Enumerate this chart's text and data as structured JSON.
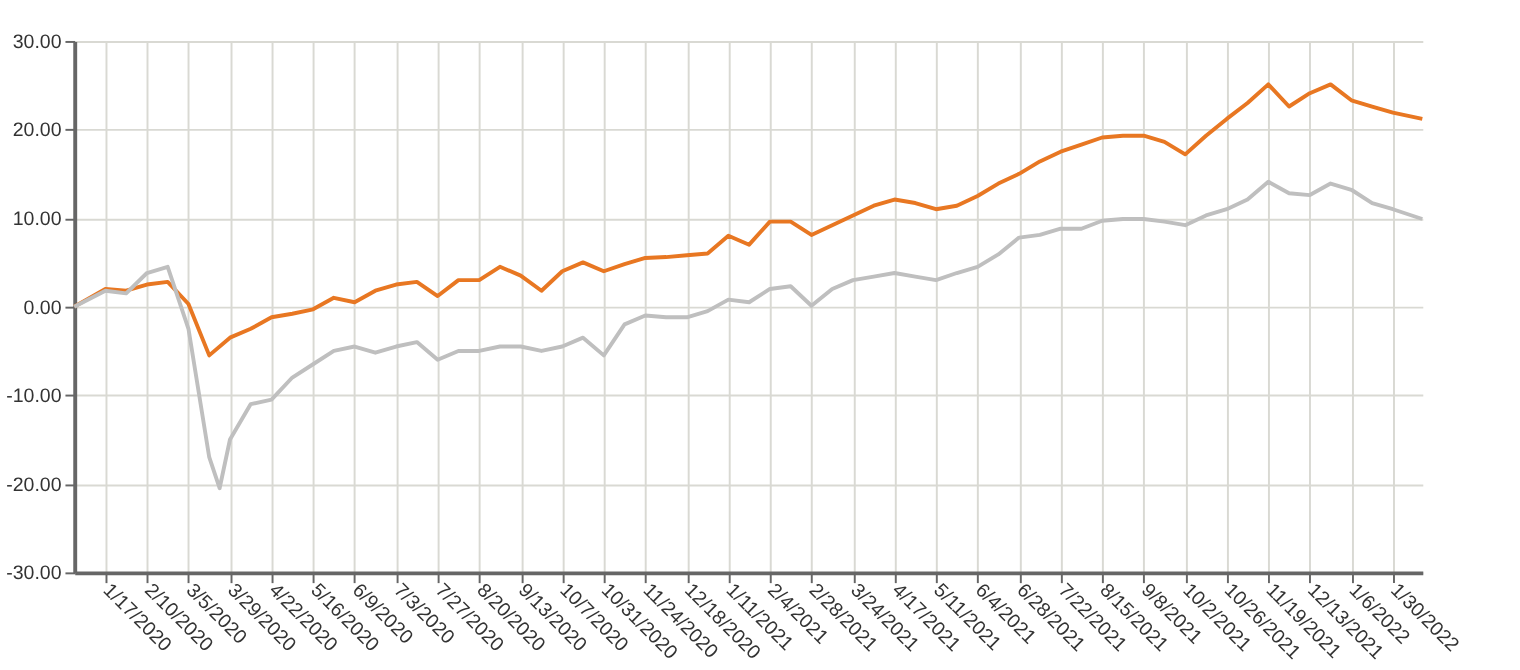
{
  "chart_data": {
    "type": "line",
    "xlim": [
      "2019-12-30",
      "2022-02-16"
    ],
    "ylim": [
      -30,
      30
    ],
    "yticks": [
      {
        "value": -30,
        "label": "-30.00"
      },
      {
        "value": -20,
        "label": "-20.00"
      },
      {
        "value": -10,
        "label": "-10.00"
      },
      {
        "value": 0,
        "label": "0.00"
      },
      {
        "value": 10,
        "label": "10.00"
      },
      {
        "value": 20,
        "label": "20.00"
      },
      {
        "value": 30,
        "label": "30.00"
      }
    ],
    "xticks": [
      {
        "value": "2020-01-17",
        "label": "1/17/2020"
      },
      {
        "value": "2020-02-10",
        "label": "2/10/2020"
      },
      {
        "value": "2020-03-05",
        "label": "3/5/2020"
      },
      {
        "value": "2020-03-29",
        "label": "3/29/2020"
      },
      {
        "value": "2020-04-22",
        "label": "4/22/2020"
      },
      {
        "value": "2020-05-16",
        "label": "5/16/2020"
      },
      {
        "value": "2020-06-09",
        "label": "6/9/2020"
      },
      {
        "value": "2020-07-03",
        "label": "7/3/2020"
      },
      {
        "value": "2020-07-27",
        "label": "7/27/2020"
      },
      {
        "value": "2020-08-20",
        "label": "8/20/2020"
      },
      {
        "value": "2020-09-13",
        "label": "9/13/2020"
      },
      {
        "value": "2020-10-07",
        "label": "10/7/2020"
      },
      {
        "value": "2020-10-31",
        "label": "10/31/2020"
      },
      {
        "value": "2020-11-24",
        "label": "11/24/2020"
      },
      {
        "value": "2020-12-18",
        "label": "12/18/2020"
      },
      {
        "value": "2021-01-11",
        "label": "1/11/2021"
      },
      {
        "value": "2021-02-04",
        "label": "2/4/2021"
      },
      {
        "value": "2021-02-28",
        "label": "2/28/2021"
      },
      {
        "value": "2021-03-24",
        "label": "3/24/2021"
      },
      {
        "value": "2021-04-17",
        "label": "4/17/2021"
      },
      {
        "value": "2021-05-11",
        "label": "5/11/2021"
      },
      {
        "value": "2021-06-04",
        "label": "6/4/2021"
      },
      {
        "value": "2021-06-28",
        "label": "6/28/2021"
      },
      {
        "value": "2021-07-22",
        "label": "7/22/2021"
      },
      {
        "value": "2021-08-15",
        "label": "8/15/2021"
      },
      {
        "value": "2021-09-08",
        "label": "9/8/2021"
      },
      {
        "value": "2021-10-02",
        "label": "10/2/2021"
      },
      {
        "value": "2021-10-26",
        "label": "10/26/2021"
      },
      {
        "value": "2021-11-19",
        "label": "11/19/2021"
      },
      {
        "value": "2021-12-13",
        "label": "12/13/2021"
      },
      {
        "value": "2022-01-06",
        "label": "1/6/2022"
      },
      {
        "value": "2022-01-30",
        "label": "1/30/2022"
      }
    ],
    "grid": true,
    "line_style": "solid",
    "marker": "none",
    "series": [
      {
        "color": "#e87722",
        "x": [
          "2019-12-30",
          "2020-01-17",
          "2020-01-29",
          "2020-02-10",
          "2020-02-22",
          "2020-03-05",
          "2020-03-17",
          "2020-03-29",
          "2020-04-10",
          "2020-04-22",
          "2020-05-04",
          "2020-05-16",
          "2020-05-28",
          "2020-06-09",
          "2020-06-21",
          "2020-07-03",
          "2020-07-15",
          "2020-07-27",
          "2020-08-08",
          "2020-08-20",
          "2020-09-01",
          "2020-09-13",
          "2020-09-25",
          "2020-10-07",
          "2020-10-19",
          "2020-10-31",
          "2020-11-12",
          "2020-11-24",
          "2020-12-06",
          "2020-12-18",
          "2020-12-30",
          "2021-01-11",
          "2021-01-23",
          "2021-02-04",
          "2021-02-16",
          "2021-02-28",
          "2021-03-12",
          "2021-03-24",
          "2021-04-05",
          "2021-04-17",
          "2021-04-29",
          "2021-05-11",
          "2021-05-23",
          "2021-06-04",
          "2021-06-16",
          "2021-06-28",
          "2021-07-10",
          "2021-07-22",
          "2021-08-03",
          "2021-08-15",
          "2021-08-27",
          "2021-09-08",
          "2021-09-20",
          "2021-10-02",
          "2021-10-14",
          "2021-10-26",
          "2021-11-07",
          "2021-11-19",
          "2021-12-01",
          "2021-12-13",
          "2021-12-25",
          "2022-01-06",
          "2022-01-18",
          "2022-01-30",
          "2022-02-16"
        ],
        "values": [
          0,
          2.0,
          1.8,
          2.5,
          2.8,
          0.3,
          -5.5,
          -3.5,
          -2.5,
          -1.2,
          -0.8,
          -0.3,
          1.0,
          0.5,
          1.8,
          2.5,
          2.8,
          1.2,
          3.0,
          3.0,
          4.5,
          3.5,
          1.8,
          4.0,
          5.0,
          4.0,
          4.8,
          5.5,
          5.6,
          5.8,
          6.0,
          8.0,
          7.0,
          9.6,
          9.6,
          8.1,
          9.2,
          10.3,
          11.4,
          12.1,
          11.7,
          11.0,
          11.4,
          12.5,
          13.9,
          15.0,
          16.4,
          17.5,
          18.3,
          19.1,
          19.3,
          19.3,
          18.6,
          17.2,
          19.3,
          21.2,
          23.0,
          25.1,
          22.6,
          24.1,
          25.1,
          23.3,
          22.6,
          21.9,
          21.2
        ]
      },
      {
        "color": "#bfbfbf",
        "x": [
          "2019-12-30",
          "2020-01-17",
          "2020-01-29",
          "2020-02-10",
          "2020-02-22",
          "2020-03-05",
          "2020-03-17",
          "2020-03-23",
          "2020-03-29",
          "2020-04-10",
          "2020-04-22",
          "2020-05-04",
          "2020-05-16",
          "2020-05-28",
          "2020-06-09",
          "2020-06-21",
          "2020-07-03",
          "2020-07-15",
          "2020-07-27",
          "2020-08-08",
          "2020-08-20",
          "2020-09-01",
          "2020-09-13",
          "2020-09-25",
          "2020-10-07",
          "2020-10-19",
          "2020-10-31",
          "2020-11-12",
          "2020-11-24",
          "2020-12-06",
          "2020-12-18",
          "2020-12-30",
          "2021-01-11",
          "2021-01-23",
          "2021-02-04",
          "2021-02-16",
          "2021-02-28",
          "2021-03-12",
          "2021-03-24",
          "2021-04-05",
          "2021-04-17",
          "2021-04-29",
          "2021-05-11",
          "2021-05-23",
          "2021-06-04",
          "2021-06-16",
          "2021-06-28",
          "2021-07-10",
          "2021-07-22",
          "2021-08-03",
          "2021-08-15",
          "2021-08-27",
          "2021-09-08",
          "2021-09-20",
          "2021-10-02",
          "2021-10-14",
          "2021-10-26",
          "2021-11-07",
          "2021-11-19",
          "2021-12-01",
          "2021-12-13",
          "2021-12-25",
          "2022-01-06",
          "2022-01-18",
          "2022-01-30",
          "2022-02-16"
        ],
        "values": [
          0,
          1.8,
          1.5,
          3.8,
          4.5,
          -2.5,
          -17,
          -20.5,
          -15,
          -11,
          -10.5,
          -8,
          -6.5,
          -5,
          -4.5,
          -5.2,
          -4.5,
          -4,
          -6,
          -5,
          -5,
          -4.5,
          -4.5,
          -5,
          -4.5,
          -3.5,
          -5.5,
          -2,
          -1,
          -1.2,
          -1.2,
          -0.5,
          0.8,
          0.5,
          2.0,
          2.3,
          0.1,
          2.0,
          3.0,
          3.4,
          3.8,
          3.4,
          3.0,
          3.8,
          4.5,
          5.9,
          7.8,
          8.1,
          8.8,
          8.8,
          9.7,
          9.9,
          9.9,
          9.6,
          9.2,
          10.3,
          11.0,
          12.1,
          14.1,
          12.8,
          12.6,
          13.9,
          13.2,
          11.7,
          11.0,
          9.9
        ]
      }
    ]
  }
}
